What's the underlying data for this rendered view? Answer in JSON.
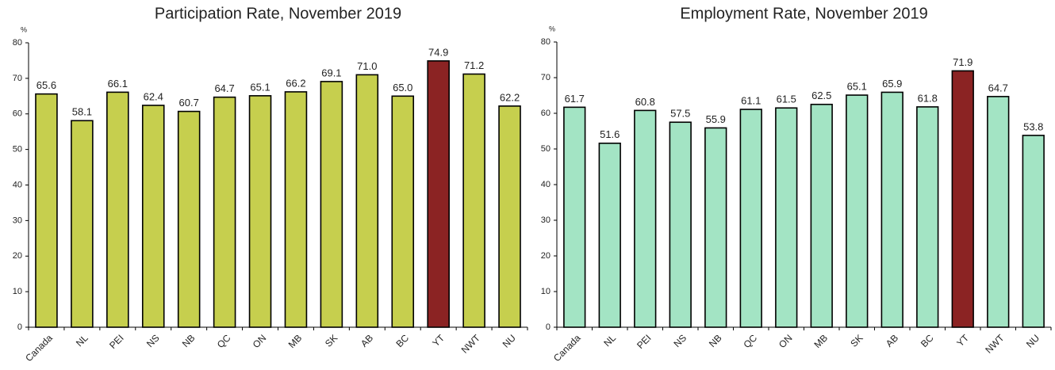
{
  "chart_data": [
    {
      "type": "bar",
      "title": "Participation Rate, November 2019",
      "y_label": "%",
      "categories": [
        "Canada",
        "NL",
        "PEI",
        "NS",
        "NB",
        "QC",
        "ON",
        "MB",
        "SK",
        "AB",
        "BC",
        "YT",
        "NWT",
        "NU"
      ],
      "values": [
        65.6,
        58.1,
        66.1,
        62.4,
        60.7,
        64.7,
        65.1,
        66.2,
        69.1,
        71.0,
        65.0,
        74.9,
        71.2,
        62.2
      ],
      "value_labels": [
        "65.6",
        "58.1",
        "66.1",
        "62.4",
        "60.7",
        "64.7",
        "65.1",
        "66.2",
        "69.1",
        "71.0",
        "65.0",
        "74.9",
        "71.2",
        "62.2"
      ],
      "colors": [
        "#c6cf4e",
        "#c6cf4e",
        "#c6cf4e",
        "#c6cf4e",
        "#c6cf4e",
        "#c6cf4e",
        "#c6cf4e",
        "#c6cf4e",
        "#c6cf4e",
        "#c6cf4e",
        "#c6cf4e",
        "#8b2323",
        "#c6cf4e",
        "#c6cf4e"
      ],
      "ylim": [
        0,
        80
      ],
      "yticks": [
        0,
        10,
        20,
        30,
        40,
        50,
        60,
        70,
        80
      ],
      "grid": false
    },
    {
      "type": "bar",
      "title": "Employment Rate, November 2019",
      "y_label": "%",
      "categories": [
        "Canada",
        "NL",
        "PEI",
        "NS",
        "NB",
        "QC",
        "ON",
        "MB",
        "SK",
        "AB",
        "BC",
        "YT",
        "NWT",
        "NU"
      ],
      "values": [
        61.7,
        51.6,
        60.8,
        57.5,
        55.9,
        61.1,
        61.5,
        62.5,
        65.1,
        65.9,
        61.8,
        71.9,
        64.7,
        53.8
      ],
      "value_labels": [
        "61.7",
        "51.6",
        "60.8",
        "57.5",
        "55.9",
        "61.1",
        "61.5",
        "62.5",
        "65.1",
        "65.9",
        "61.8",
        "71.9",
        "64.7",
        "53.8"
      ],
      "colors": [
        "#a3e4c4",
        "#a3e4c4",
        "#a3e4c4",
        "#a3e4c4",
        "#a3e4c4",
        "#a3e4c4",
        "#a3e4c4",
        "#a3e4c4",
        "#a3e4c4",
        "#a3e4c4",
        "#a3e4c4",
        "#8b2323",
        "#a3e4c4",
        "#a3e4c4"
      ],
      "ylim": [
        0,
        80
      ],
      "yticks": [
        0,
        10,
        20,
        30,
        40,
        50,
        60,
        70,
        80
      ],
      "grid": false
    }
  ]
}
